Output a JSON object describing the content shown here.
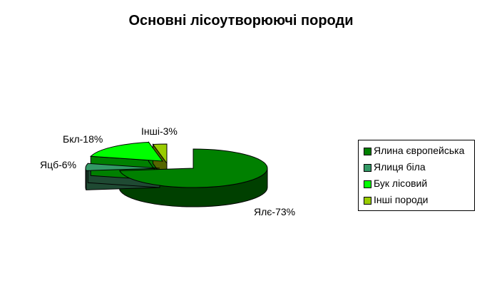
{
  "chart_data": {
    "type": "pie",
    "title": "Основні лісоутворюючі породи",
    "slices": [
      {
        "legend": "Ялина європейська",
        "data_label": "Ялє-73%",
        "value": 73,
        "color": "#008000",
        "side_color": "#004000"
      },
      {
        "legend": "Ялиця біла",
        "data_label": "Яцб-6%",
        "value": 6,
        "color": "#339966",
        "side_color": "#1f4a33"
      },
      {
        "legend": "Бук лісовий",
        "data_label": "Бкл-18%",
        "value": 18,
        "color": "#00ff00",
        "side_color": "#008000"
      },
      {
        "legend": "Інші породи",
        "data_label": "Інші-3%",
        "value": 3,
        "color": "#99cc00",
        "side_color": "#556600"
      }
    ],
    "legend_position": "right"
  }
}
